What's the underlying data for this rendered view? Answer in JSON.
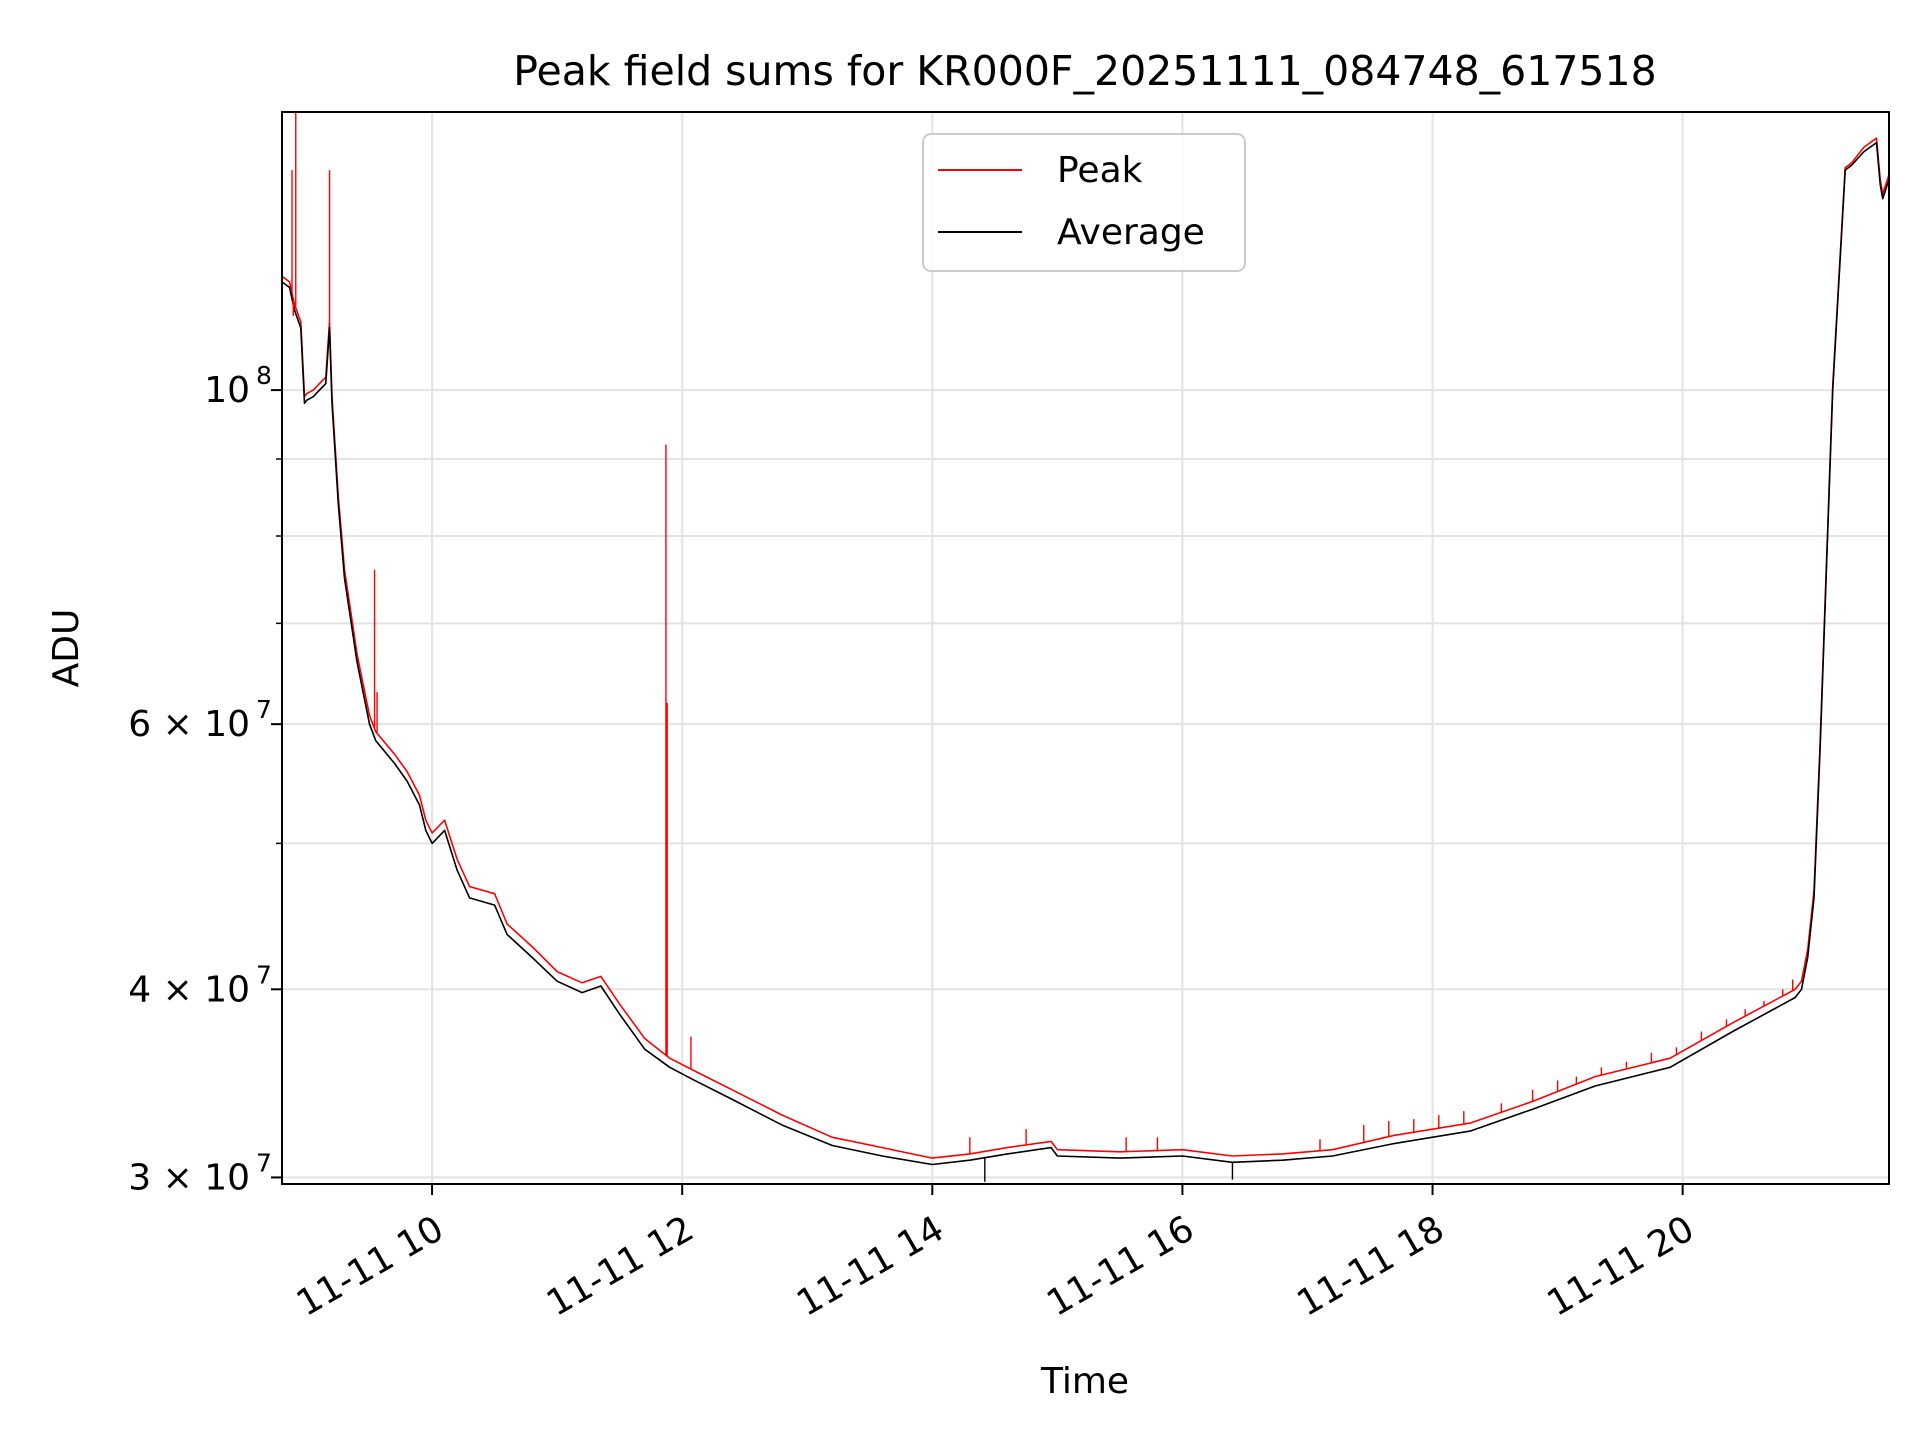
{
  "chart_data": {
    "type": "line",
    "title": "Peak field sums for KR000F_20251111_084748_617518",
    "xlabel": "Time",
    "ylabel": "ADU",
    "yscale": "log",
    "grid": true,
    "legend_position": "top-center",
    "xlim_hours": [
      8.8,
      21.65
    ],
    "ylim": [
      29700000,
      153000000
    ],
    "x_ticks": [
      {
        "hour": 10,
        "label": "11-11 10"
      },
      {
        "hour": 12,
        "label": "11-11 12"
      },
      {
        "hour": 14,
        "label": "11-11 14"
      },
      {
        "hour": 16,
        "label": "11-11 16"
      },
      {
        "hour": 18,
        "label": "11-11 18"
      },
      {
        "hour": 20,
        "label": "11-11 20"
      }
    ],
    "y_major_ticks": [
      {
        "value": 30000000,
        "mant": "3 × 10",
        "exp": "7"
      },
      {
        "value": 40000000,
        "mant": "4 × 10",
        "exp": "7"
      },
      {
        "value": 60000000,
        "mant": "6 × 10",
        "exp": "7"
      },
      {
        "value": 100000000,
        "mant": "10",
        "exp": "8"
      }
    ],
    "y_minor_ticks": [
      50000000,
      70000000,
      80000000,
      90000000
    ],
    "series": [
      {
        "name": "Average",
        "color": "#000000",
        "x_hours": [
          8.8,
          8.86,
          8.9,
          8.95,
          8.98,
          9.0,
          9.05,
          9.1,
          9.15,
          9.18,
          9.2,
          9.25,
          9.3,
          9.4,
          9.5,
          9.55,
          9.7,
          9.8,
          9.9,
          9.95,
          10.0,
          10.1,
          10.2,
          10.3,
          10.5,
          10.6,
          10.8,
          11.0,
          11.2,
          11.35,
          11.5,
          11.7,
          11.9,
          12.1,
          12.4,
          12.8,
          13.2,
          13.6,
          14.0,
          14.3,
          14.6,
          14.95,
          15.0,
          15.5,
          16.0,
          16.4,
          16.8,
          17.2,
          17.7,
          18.3,
          18.8,
          19.3,
          19.9,
          20.4,
          20.9,
          20.95,
          21.0,
          21.05,
          21.1,
          21.2,
          21.3,
          21.35,
          21.45,
          21.55,
          21.58,
          21.6,
          21.65
        ],
        "values": [
          118000000,
          117000000,
          113000000,
          110000000,
          98000000,
          98500000,
          99000000,
          100000000,
          101000000,
          110000000,
          98000000,
          84000000,
          75000000,
          66000000,
          60000000,
          58500000,
          56500000,
          55000000,
          53000000,
          51000000,
          50000000,
          51000000,
          48000000,
          46000000,
          45500000,
          43500000,
          42000000,
          40500000,
          39800000,
          40200000,
          38500000,
          36500000,
          35500000,
          34800000,
          33800000,
          32500000,
          31500000,
          31000000,
          30600000,
          30800000,
          31100000,
          31400000,
          31000000,
          30900000,
          31000000,
          30700000,
          30800000,
          31000000,
          31600000,
          32200000,
          33300000,
          34500000,
          35500000,
          37500000,
          39500000,
          40000000,
          42000000,
          46000000,
          58000000,
          100000000,
          140000000,
          141000000,
          144000000,
          146000000,
          137000000,
          134000000,
          138000000
        ]
      },
      {
        "name": "Peak",
        "color": "#ff0000",
        "x_hours": [
          8.8,
          8.86,
          8.9,
          8.95,
          8.98,
          9.0,
          9.05,
          9.1,
          9.15,
          9.18,
          9.2,
          9.25,
          9.3,
          9.4,
          9.5,
          9.55,
          9.7,
          9.8,
          9.9,
          9.95,
          10.0,
          10.1,
          10.2,
          10.3,
          10.5,
          10.6,
          10.8,
          11.0,
          11.2,
          11.35,
          11.5,
          11.7,
          11.9,
          12.1,
          12.4,
          12.8,
          13.2,
          13.6,
          14.0,
          14.3,
          14.6,
          14.95,
          15.0,
          15.5,
          16.0,
          16.4,
          16.8,
          17.2,
          17.7,
          18.3,
          18.8,
          19.3,
          19.9,
          20.4,
          20.9,
          20.95,
          21.0,
          21.05,
          21.1,
          21.2,
          21.3,
          21.35,
          21.45,
          21.55,
          21.58,
          21.6,
          21.65
        ],
        "values": [
          119000000,
          118000000,
          114000000,
          111000000,
          99000000,
          99500000,
          100000000,
          101000000,
          102000000,
          111000000,
          99000000,
          85000000,
          76000000,
          66800000,
          60800000,
          59300000,
          57300000,
          55800000,
          53800000,
          51800000,
          50800000,
          51800000,
          48800000,
          46800000,
          46300000,
          44200000,
          42700000,
          41100000,
          40400000,
          40800000,
          39100000,
          37100000,
          36000000,
          35300000,
          34300000,
          33000000,
          31900000,
          31400000,
          30900000,
          31100000,
          31400000,
          31700000,
          31300000,
          31200000,
          31300000,
          31000000,
          31100000,
          31300000,
          32000000,
          32600000,
          33700000,
          35000000,
          36000000,
          38000000,
          40000000,
          40500000,
          42500000,
          46500000,
          58500000,
          100500000,
          140500000,
          141500000,
          145000000,
          147000000,
          138000000,
          135000000,
          139000000
        ]
      }
    ],
    "peak_spikes": [
      {
        "hour": 8.88,
        "value": 140000000
      },
      {
        "hour": 8.89,
        "value": 112000000
      },
      {
        "hour": 8.91,
        "value": 153000000
      },
      {
        "hour": 9.18,
        "value": 140000000
      },
      {
        "hour": 9.54,
        "value": 76000000
      },
      {
        "hour": 9.56,
        "value": 63000000
      },
      {
        "hour": 11.87,
        "value": 92000000
      },
      {
        "hour": 11.88,
        "value": 62000000
      },
      {
        "hour": 12.07,
        "value": 37200000
      },
      {
        "hour": 14.3,
        "value": 31900000
      },
      {
        "hour": 14.75,
        "value": 32300000
      },
      {
        "hour": 15.55,
        "value": 31900000
      },
      {
        "hour": 15.8,
        "value": 31900000
      },
      {
        "hour": 17.1,
        "value": 31800000
      },
      {
        "hour": 17.45,
        "value": 32500000
      },
      {
        "hour": 17.65,
        "value": 32700000
      },
      {
        "hour": 17.85,
        "value": 32800000
      },
      {
        "hour": 18.05,
        "value": 33000000
      },
      {
        "hour": 18.25,
        "value": 33200000
      },
      {
        "hour": 18.55,
        "value": 33600000
      },
      {
        "hour": 18.8,
        "value": 34300000
      },
      {
        "hour": 19.0,
        "value": 34800000
      },
      {
        "hour": 19.15,
        "value": 35000000
      },
      {
        "hour": 19.35,
        "value": 35500000
      },
      {
        "hour": 19.55,
        "value": 35800000
      },
      {
        "hour": 19.75,
        "value": 36300000
      },
      {
        "hour": 19.95,
        "value": 36600000
      },
      {
        "hour": 20.15,
        "value": 37500000
      },
      {
        "hour": 20.35,
        "value": 38200000
      },
      {
        "hour": 20.5,
        "value": 38800000
      },
      {
        "hour": 20.65,
        "value": 39300000
      },
      {
        "hour": 20.8,
        "value": 40000000
      },
      {
        "hour": 20.88,
        "value": 40600000
      }
    ],
    "avg_dips": [
      {
        "hour": 14.42,
        "value": 29800000
      },
      {
        "hour": 16.4,
        "value": 29900000
      }
    ],
    "legend": [
      {
        "label": "Peak",
        "color": "#ff0000"
      },
      {
        "label": "Average",
        "color": "#000000"
      }
    ]
  }
}
